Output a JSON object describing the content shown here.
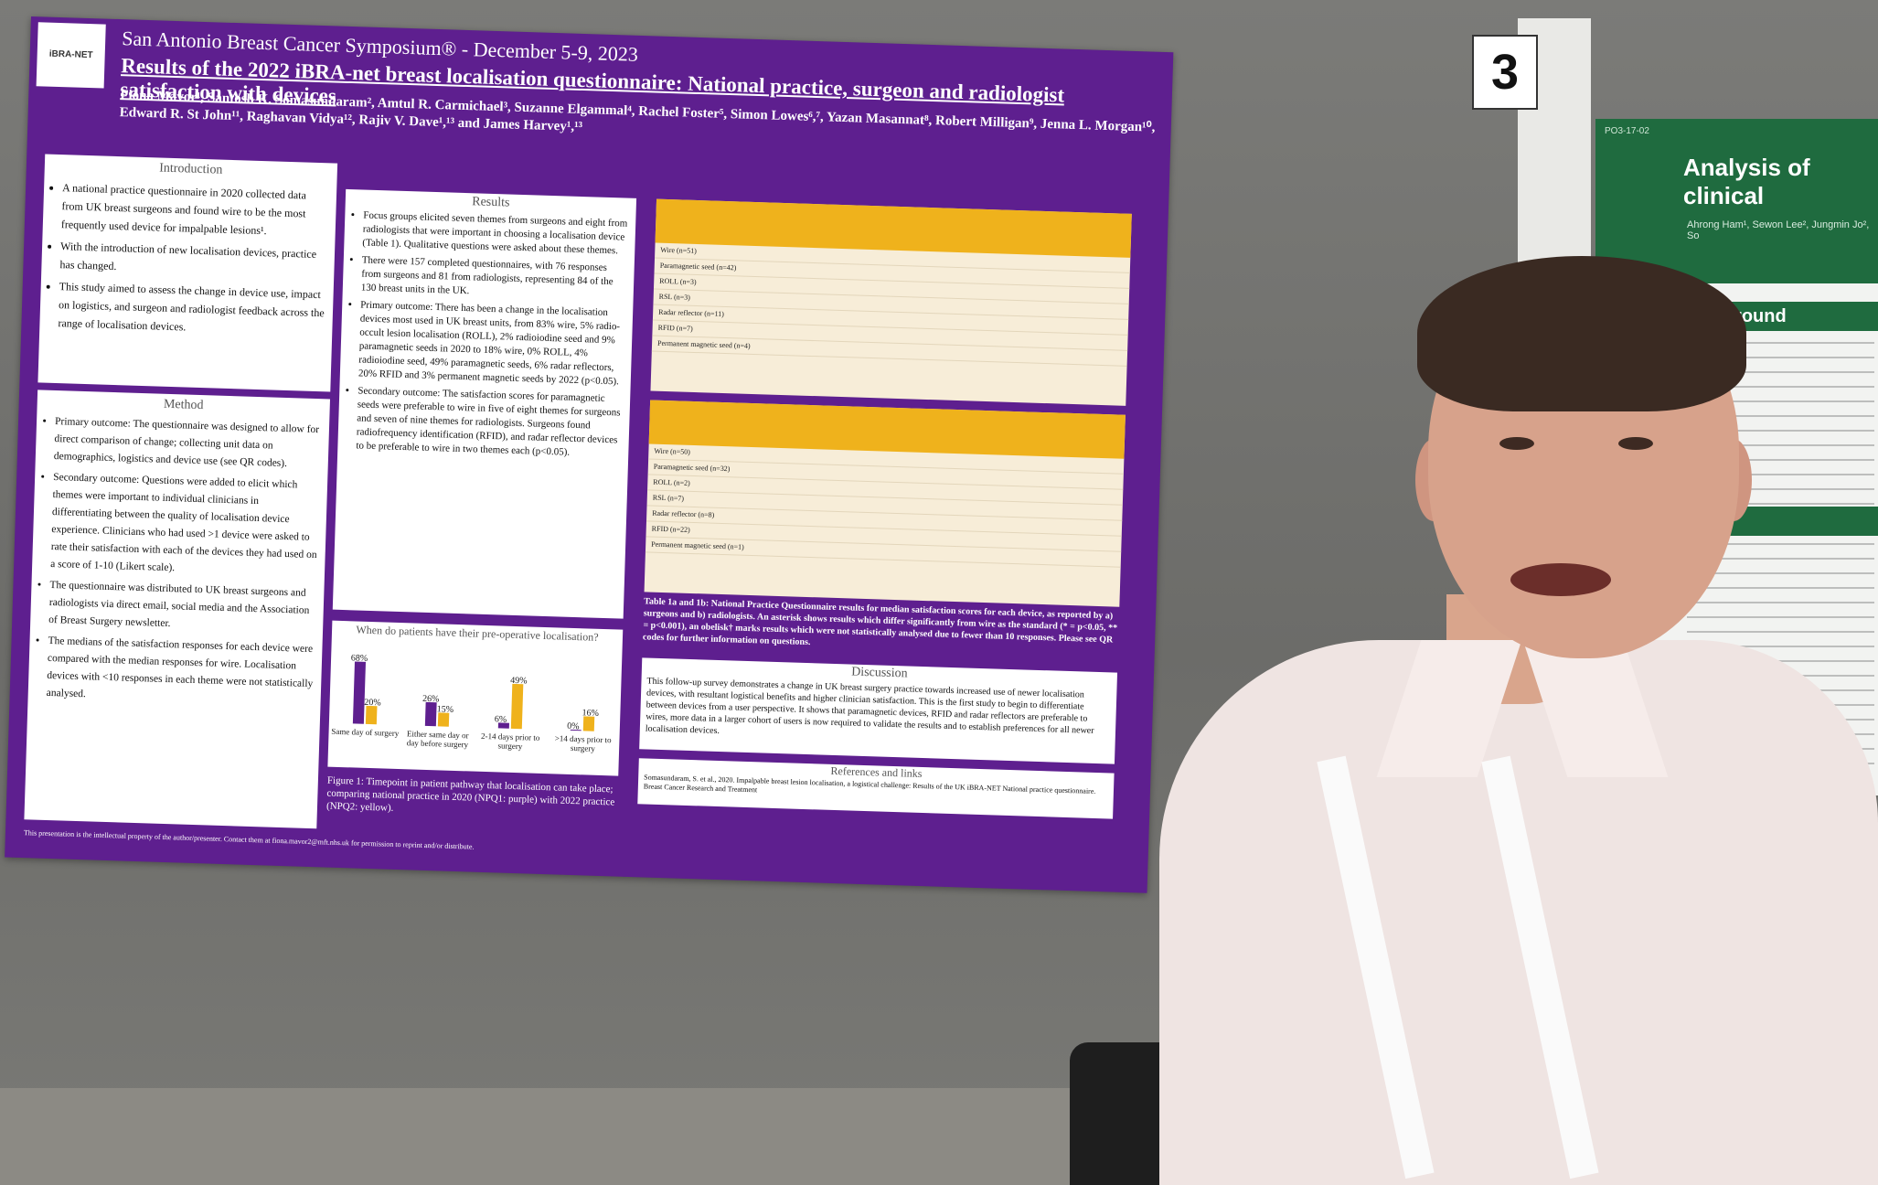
{
  "poster": {
    "conference": "San Antonio Breast Cancer Symposium® - December 5-9, 2023",
    "title": "Results of the 2022 iBRA-net breast localisation questionnaire: National practice, surgeon and radiologist satisfaction with devices",
    "authors": "Fiona Mavor¹, Santosh K. Somasundaram², Amtul R. Carmichael³, Suzanne Elgammal⁴, Rachel Foster⁵, Simon Lowes⁶,⁷, Yazan Masannat⁸, Robert Milligan⁹, Jenna L. Morgan¹⁰, Edward R. St John¹¹, Raghavan Vidya¹², Rajiv V. Dave¹,¹³ and James Harvey¹,¹³",
    "logo_text": "iBRA-NET",
    "intro": {
      "heading": "Introduction",
      "bullets": [
        "A national practice questionnaire in 2020 collected data from UK breast surgeons and found wire to be the most frequently used device for impalpable lesions¹.",
        "With the introduction of new localisation devices, practice has changed.",
        "This study aimed to assess the change in device use, impact on logistics, and surgeon and radiologist feedback across the range of localisation devices."
      ]
    },
    "method": {
      "heading": "Method",
      "bullets": [
        "Primary outcome: The questionnaire was designed to allow for direct comparison of change; collecting unit data on demographics, logistics and device use (see QR codes).",
        "Secondary outcome: Questions were added to elicit which themes were important to individual clinicians in differentiating between the quality of localisation device experience. Clinicians who had used >1 device were asked to rate their satisfaction with each of the devices they had used on a score of 1-10 (Likert scale).",
        "The questionnaire was distributed to UK breast surgeons and radiologists via direct email, social media and the Association of Breast Surgery newsletter.",
        "The medians of the satisfaction responses for each device were compared with the median responses for wire. Localisation devices with <10 responses in each theme were not statistically analysed."
      ]
    },
    "results": {
      "heading": "Results",
      "bullets": [
        "Focus groups elicited seven themes from surgeons and eight from radiologists that were important in choosing a localisation device (Table 1). Qualitative questions were asked about these themes.",
        "There were 157 completed questionnaires, with 76 responses from surgeons and 81 from radiologists, representing 84 of the 130 breast units in the UK.",
        "Primary outcome: There has been a change in the localisation devices most used in UK breast units, from 83% wire, 5% radio-occult lesion localisation (ROLL), 2% radioiodine seed and 9% paramagnetic seeds in 2020 to 18% wire, 0% ROLL, 4% radioiodine seed, 49% paramagnetic seeds, 6% radar reflectors, 20% RFID and 3% permanent magnetic seeds by 2022 (p<0.05).",
        "Secondary outcome: The satisfaction scores for paramagnetic seeds were preferable to wire in five of eight themes for surgeons and seven of nine themes for radiologists. Surgeons found radiofrequency identification (RFID), and radar reflector devices to be preferable to wire in two themes each (p<0.05)."
      ]
    },
    "chart_data": {
      "type": "bar",
      "title": "When do patients have their pre-operative localisation?",
      "categories": [
        "Same day of surgery",
        "Either same day or day before surgery",
        "2-14 days prior to surgery",
        ">14 days prior to surgery"
      ],
      "series": [
        {
          "name": "NPQ 1",
          "values": [
            68,
            26,
            6,
            0
          ]
        },
        {
          "name": "NPQ 2",
          "values": [
            20,
            15,
            49,
            16
          ]
        }
      ],
      "ylim": [
        0,
        70
      ],
      "value_labels": [
        [
          "68%",
          "26%",
          "6%",
          "0%"
        ],
        [
          "20%",
          "15%",
          "49%",
          "16%"
        ]
      ],
      "colors": [
        "#5e1f8f",
        "#efb21c"
      ]
    },
    "figure_caption": "Figure 1: Timepoint in patient pathway that localisation can take place; comparing national practice in 2020 (NPQ1: purple) with 2022 practice (NPQ2: yellow).",
    "table_a_rows": [
      "Wire (n=51)",
      "Paramagnetic seed (n=42)",
      "ROLL (n=3)",
      "RSL (n=3)",
      "Radar reflector (n=11)",
      "RFID (n=7)",
      "Permanent magnetic seed (n=4)"
    ],
    "table_b_rows": [
      "Wire (n=50)",
      "Paramagnetic seed (n=32)",
      "ROLL (n=2)",
      "RSL (n=7)",
      "Radar reflector (n=8)",
      "RFID (n=22)",
      "Permanent magnetic seed (n=1)"
    ],
    "table_caption": "Table 1a and 1b: National Practice Questionnaire results for median satisfaction scores for each device, as reported by a) surgeons and b) radiologists. An asterisk shows results which differ significantly from wire as the standard (* = p<0.05, ** = p<0.001), an obelisk† marks results which were not statistically analysed due to fewer than 10 responses. Please see QR codes for further information on questions.",
    "discussion": {
      "heading": "Discussion",
      "text": "This follow-up survey demonstrates a change in UK breast surgery practice towards increased use of newer localisation devices, with resultant logistical benefits and higher clinician satisfaction. This is the first study to begin to differentiate between devices from a user perspective. It shows that paramagnetic devices, RFID and radar reflectors are preferable to wires, more data in a larger cohort of users is now required to validate the results and to establish preferences for all newer localisation devices."
    },
    "references": {
      "heading": "References and links",
      "text": "Somasundaram, S. et al., 2020. Impalpable breast lesion localisation, a logistical challenge: Results of the UK iBRA-NET National practice questionnaire. Breast Cancer Research and Treatment"
    },
    "ip_note": "This presentation is the intellectual property of the author/presenter. Contact them at fiona.mavor2@mft.nhs.uk for permission to reprint and/or distribute."
  },
  "board_number": "3",
  "poster2": {
    "code": "PO3-17-02",
    "title": "Analysis of clinical",
    "authors": "Ahrong Ham¹, Sewon Lee², Jungmin Jo², So",
    "sections": [
      "Background",
      "hods"
    ]
  }
}
